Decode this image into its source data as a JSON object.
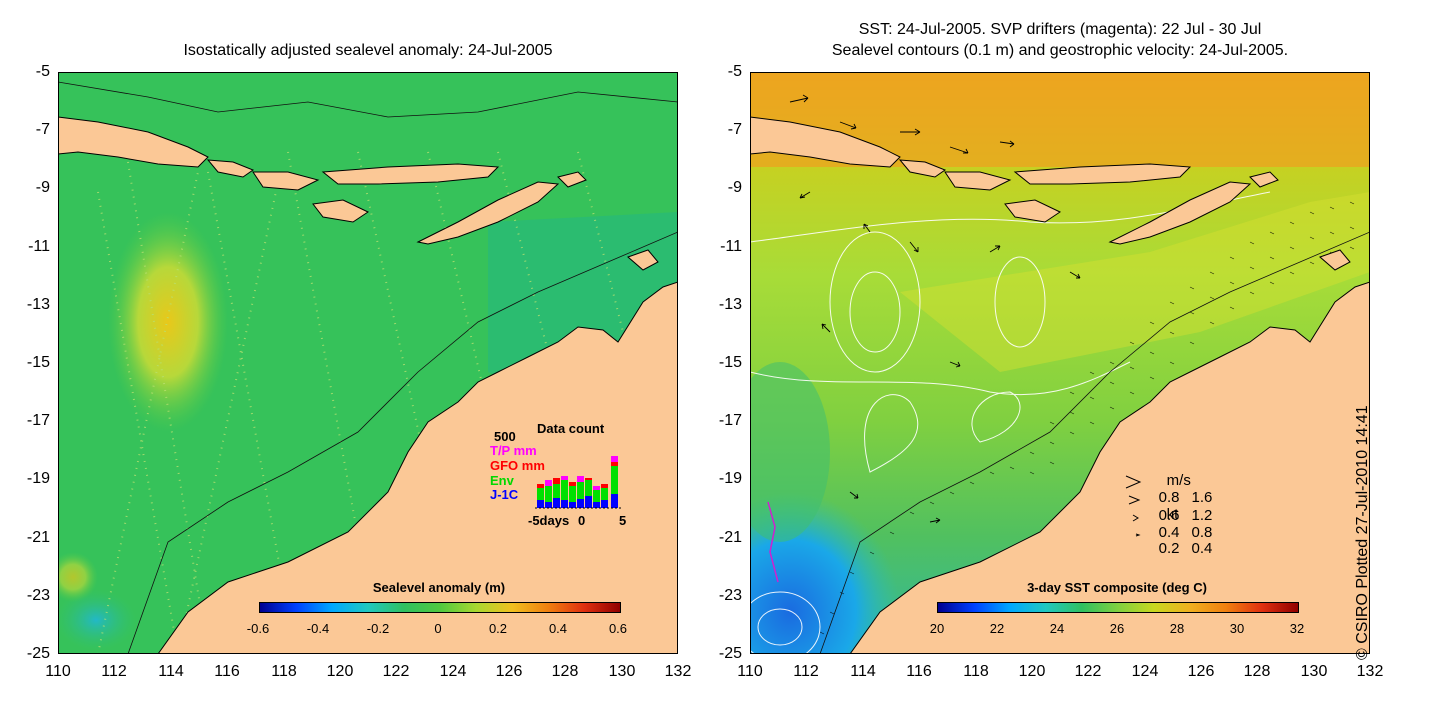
{
  "left_panel": {
    "title": "Isostatically adjusted sealevel anomaly: 24-Jul-2005",
    "colorbar": {
      "title": "Sealevel anomaly (m)",
      "ticks": [
        "-0.6",
        "-0.4",
        "-0.2",
        "0",
        "0.2",
        "0.4",
        "0.6"
      ],
      "range": [
        -0.6,
        0.6
      ]
    },
    "inset": {
      "title": "Data count",
      "ymax_label": "500",
      "series": [
        {
          "name": "T/P mm",
          "color": "#ff00ff"
        },
        {
          "name": "GFO mm",
          "color": "#ff0000"
        },
        {
          "name": "Env",
          "color": "#00e000"
        },
        {
          "name": "J-1C",
          "color": "#0000ff"
        }
      ],
      "x_left": "-5days",
      "x_mid": "0",
      "x_right": "5"
    }
  },
  "right_panel": {
    "title_line1": "SST: 24-Jul-2005. SVP drifters (magenta): 22 Jul - 30 Jul",
    "title_line2": "Sealevel contours (0.1 m) and geostrophic velocity: 24-Jul-2005.",
    "colorbar": {
      "title": "3-day SST composite (deg C)",
      "ticks": [
        "20",
        "22",
        "24",
        "26",
        "28",
        "30",
        "32"
      ],
      "range": [
        20,
        32
      ]
    },
    "velocity_legend": {
      "header_ms": "m/s",
      "header_kt": "kt",
      "rows": [
        {
          "ms": "0.8",
          "kt": "1.6"
        },
        {
          "ms": "0.6",
          "kt": "1.2"
        },
        {
          "ms": "0.4",
          "kt": "0.8"
        },
        {
          "ms": "0.2",
          "kt": "0.4"
        }
      ]
    }
  },
  "axes": {
    "y_ticks": [
      "-5",
      "-7",
      "-9",
      "-11",
      "-13",
      "-15",
      "-17",
      "-19",
      "-21",
      "-23",
      "-25"
    ],
    "x_ticks": [
      "110",
      "112",
      "114",
      "116",
      "118",
      "120",
      "122",
      "124",
      "126",
      "128",
      "130",
      "132"
    ],
    "lon_range": [
      110,
      132
    ],
    "lat_range": [
      -5,
      -25
    ]
  },
  "credit": "© CSIRO Plotted 27-Jul-2010 14:41",
  "colors": {
    "land": "#fbc896",
    "sla_background": "#33c457",
    "sst_background": "#8fd840"
  }
}
